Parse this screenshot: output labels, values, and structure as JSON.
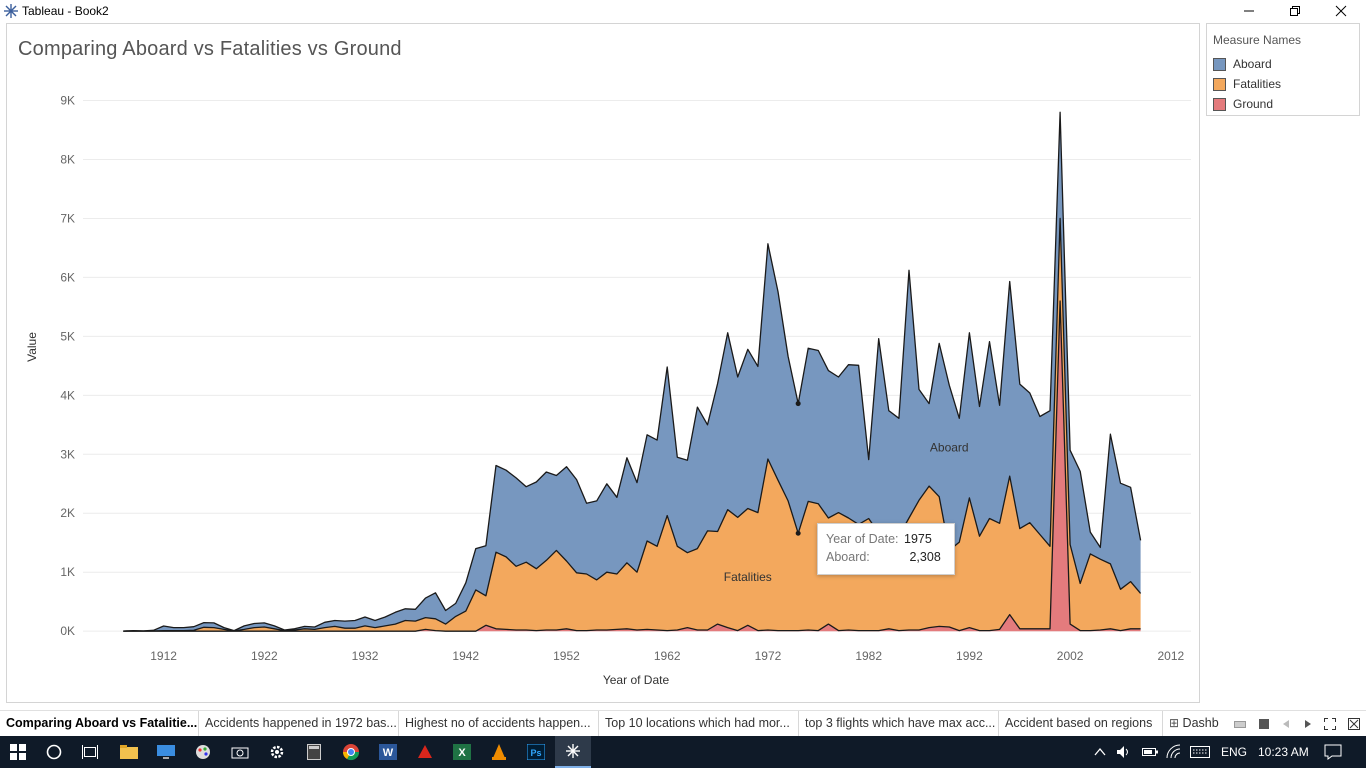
{
  "window": {
    "title": "Tableau - Book2",
    "icon": "tableau-icon",
    "controls": [
      "minimize-icon",
      "restore-icon",
      "close-icon"
    ]
  },
  "sheet": {
    "title": "Comparing Aboard vs Fatalities vs Ground"
  },
  "legend": {
    "title": "Measure Names",
    "items": [
      {
        "label": "Aboard",
        "color": "#7797bf"
      },
      {
        "label": "Fatalities",
        "color": "#f3a85d"
      },
      {
        "label": "Ground",
        "color": "#e47b7d"
      }
    ]
  },
  "chart_data": {
    "type": "area",
    "stacked": true,
    "xlabel": "Year of Date",
    "ylabel": "Value",
    "xlim": [
      1904,
      2014
    ],
    "ylim": [
      -150,
      9450
    ],
    "x_ticks": [
      1912,
      1922,
      1932,
      1942,
      1952,
      1962,
      1972,
      1982,
      1992,
      2002,
      2012
    ],
    "y_ticks": [
      {
        "value": 0,
        "label": "0K"
      },
      {
        "value": 1000,
        "label": "1K"
      },
      {
        "value": 2000,
        "label": "2K"
      },
      {
        "value": 3000,
        "label": "3K"
      },
      {
        "value": 4000,
        "label": "4K"
      },
      {
        "value": 5000,
        "label": "5K"
      },
      {
        "value": 6000,
        "label": "6K"
      },
      {
        "value": 7000,
        "label": "7K"
      },
      {
        "value": 8000,
        "label": "8K"
      },
      {
        "value": 9000,
        "label": "9K"
      }
    ],
    "grid": "horizontal",
    "area_labels": [
      {
        "series": "Aboard",
        "text": "Aboard",
        "x": 1990,
        "y": 3050
      },
      {
        "series": "Fatalities",
        "text": "Fatalities",
        "x": 1970,
        "y": 850
      }
    ],
    "x": [
      1908,
      1909,
      1910,
      1911,
      1912,
      1913,
      1914,
      1915,
      1916,
      1917,
      1918,
      1919,
      1920,
      1921,
      1922,
      1923,
      1924,
      1925,
      1926,
      1927,
      1928,
      1929,
      1930,
      1931,
      1932,
      1933,
      1934,
      1935,
      1936,
      1937,
      1938,
      1939,
      1940,
      1941,
      1942,
      1943,
      1944,
      1945,
      1946,
      1947,
      1948,
      1949,
      1950,
      1951,
      1952,
      1953,
      1954,
      1955,
      1956,
      1957,
      1958,
      1959,
      1960,
      1961,
      1962,
      1963,
      1964,
      1965,
      1966,
      1967,
      1968,
      1969,
      1970,
      1971,
      1972,
      1973,
      1974,
      1975,
      1976,
      1977,
      1978,
      1979,
      1980,
      1981,
      1982,
      1983,
      1984,
      1985,
      1986,
      1987,
      1988,
      1989,
      1990,
      1991,
      1992,
      1993,
      1994,
      1995,
      1996,
      1997,
      1998,
      1999,
      2000,
      2001,
      2002,
      2003,
      2004,
      2005,
      2006,
      2007,
      2008,
      2009
    ],
    "series": [
      {
        "name": "Ground",
        "values": [
          0,
          0,
          0,
          0,
          0,
          0,
          0,
          0,
          0,
          0,
          0,
          0,
          0,
          0,
          0,
          0,
          0,
          0,
          0,
          0,
          0,
          0,
          0,
          0,
          0,
          0,
          0,
          0,
          0,
          0,
          30,
          10,
          0,
          0,
          0,
          0,
          100,
          40,
          30,
          20,
          20,
          10,
          20,
          20,
          40,
          10,
          10,
          20,
          20,
          30,
          40,
          20,
          30,
          20,
          10,
          20,
          60,
          20,
          20,
          120,
          60,
          10,
          100,
          10,
          20,
          10,
          10,
          10,
          20,
          10,
          120,
          10,
          20,
          10,
          10,
          10,
          40,
          10,
          20,
          20,
          60,
          80,
          70,
          10,
          60,
          10,
          10,
          30,
          280,
          40,
          40,
          40,
          40,
          5600,
          120,
          10,
          10,
          20,
          40,
          10,
          40,
          40
        ]
      },
      {
        "name": "Fatalities",
        "values": [
          1,
          5,
          2,
          5,
          8,
          10,
          10,
          15,
          65,
          60,
          30,
          5,
          30,
          60,
          70,
          40,
          10,
          20,
          40,
          30,
          60,
          80,
          50,
          50,
          90,
          60,
          90,
          120,
          180,
          170,
          200,
          200,
          120,
          250,
          340,
          700,
          500,
          1300,
          1230,
          1080,
          1150,
          1050,
          1180,
          1350,
          1150,
          980,
          960,
          850,
          980,
          940,
          1120,
          980,
          1500,
          1420,
          1950,
          1420,
          1270,
          1380,
          1680,
          1570,
          2000,
          1920,
          1980,
          2000,
          2900,
          2550,
          2200,
          1650,
          2180,
          2150,
          1800,
          2000,
          1900,
          1800,
          1900,
          1650,
          1500,
          1600,
          1900,
          2200,
          2400,
          2200,
          1300,
          1500,
          2200,
          1600,
          1900,
          1800,
          2350,
          1700,
          1800,
          1600,
          1400,
          1400,
          1350,
          800,
          1300,
          1200,
          1100,
          700,
          800,
          600
        ]
      },
      {
        "name": "Aboard",
        "values": [
          1,
          5,
          2,
          10,
          80,
          50,
          50,
          60,
          80,
          80,
          30,
          5,
          60,
          70,
          70,
          50,
          10,
          20,
          40,
          40,
          90,
          100,
          120,
          130,
          150,
          120,
          150,
          200,
          200,
          200,
          330,
          440,
          230,
          220,
          480,
          700,
          850,
          1470,
          1470,
          1500,
          1280,
          1470,
          1500,
          1270,
          1600,
          1580,
          1200,
          1340,
          1500,
          1300,
          1780,
          1520,
          1800,
          1800,
          2520,
          1510,
          1570,
          2400,
          1800,
          2510,
          3000,
          2380,
          2700,
          2480,
          3650,
          3200,
          2450,
          2200,
          2600,
          2600,
          2500,
          2300,
          2600,
          2700,
          1000,
          3300,
          2200,
          2000,
          4200,
          1880,
          1400,
          2600,
          2800,
          2100,
          2800,
          2200,
          3000,
          2000,
          3300,
          2450,
          2200,
          2000,
          2300,
          1800,
          1600,
          1900,
          370,
          200,
          2200,
          1800,
          1600,
          900
        ]
      }
    ],
    "highlight": {
      "x": 1975,
      "aboard": 2308
    }
  },
  "tooltip": {
    "rows": [
      {
        "label": "Year of Date:",
        "value": "1975"
      },
      {
        "label": "Aboard:",
        "value": "2,308"
      }
    ]
  },
  "sheet_tabs": [
    {
      "label": "Comparing Aboard vs Fatalitie...",
      "active": true
    },
    {
      "label": "Accidents happened in 1972 bas...",
      "active": false
    },
    {
      "label": "Highest no of accidents happen...",
      "active": false
    },
    {
      "label": "Top 10 locations which had mor...",
      "active": false
    },
    {
      "label": "top 3 flights which have max acc...",
      "active": false
    },
    {
      "label": "Accident based on regions",
      "active": false
    },
    {
      "label": "Dashb",
      "active": false
    }
  ],
  "taskbar": {
    "apps": [
      "windows-start-icon",
      "cortana-icon",
      "task-view-icon",
      "file-explorer-icon",
      "desktop-icon",
      "paint-icon",
      "camera-icon",
      "settings-icon",
      "calculator-icon",
      "chrome-icon",
      "word-icon",
      "acrobat-icon",
      "excel-icon",
      "vlc-icon",
      "photoshop-icon",
      "tableau-icon"
    ],
    "language": "ENG",
    "time": "10:23 AM"
  }
}
